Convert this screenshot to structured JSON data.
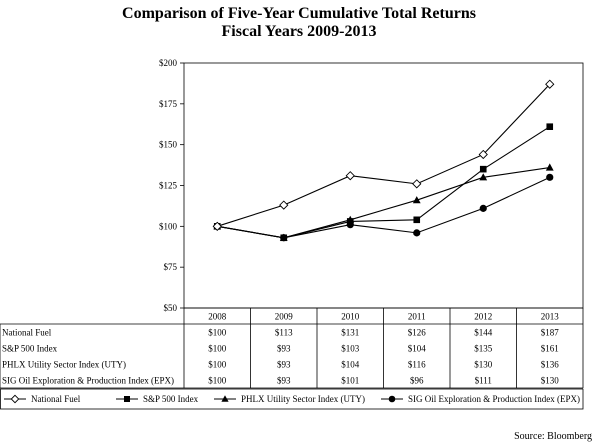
{
  "chart_data": {
    "type": "line",
    "title": "Comparison of Five-Year Cumulative Total Returns",
    "subtitle": "Fiscal Years 2009-2013",
    "categories": [
      "2008",
      "2009",
      "2010",
      "2011",
      "2012",
      "2013"
    ],
    "y_ticks": [
      "$200",
      "$175",
      "$150",
      "$125",
      "$100",
      "$75",
      "$50"
    ],
    "ylim": [
      50,
      200
    ],
    "grid": false,
    "legend_position": "bottom",
    "series": [
      {
        "name": "National Fuel",
        "marker": "diamond-open",
        "values": [
          100,
          113,
          131,
          126,
          144,
          187
        ],
        "labels": [
          "$100",
          "$113",
          "$131",
          "$126",
          "$144",
          "$187"
        ]
      },
      {
        "name": "S&P 500 Index",
        "marker": "square",
        "values": [
          100,
          93,
          103,
          104,
          135,
          161
        ],
        "labels": [
          "$100",
          "$93",
          "$103",
          "$104",
          "$135",
          "$161"
        ]
      },
      {
        "name": "PHLX Utility Sector Index (UTY)",
        "marker": "triangle",
        "values": [
          100,
          93,
          104,
          116,
          130,
          136
        ],
        "labels": [
          "$100",
          "$93",
          "$104",
          "$116",
          "$130",
          "$136"
        ]
      },
      {
        "name": "SIG Oil Exploration & Production Index (EPX)",
        "marker": "circle",
        "values": [
          100,
          93,
          101,
          96,
          111,
          130
        ],
        "labels": [
          "$100",
          "$93",
          "$101",
          "$96",
          "$111",
          "$130"
        ]
      }
    ]
  },
  "source": "Source: Bloomberg"
}
